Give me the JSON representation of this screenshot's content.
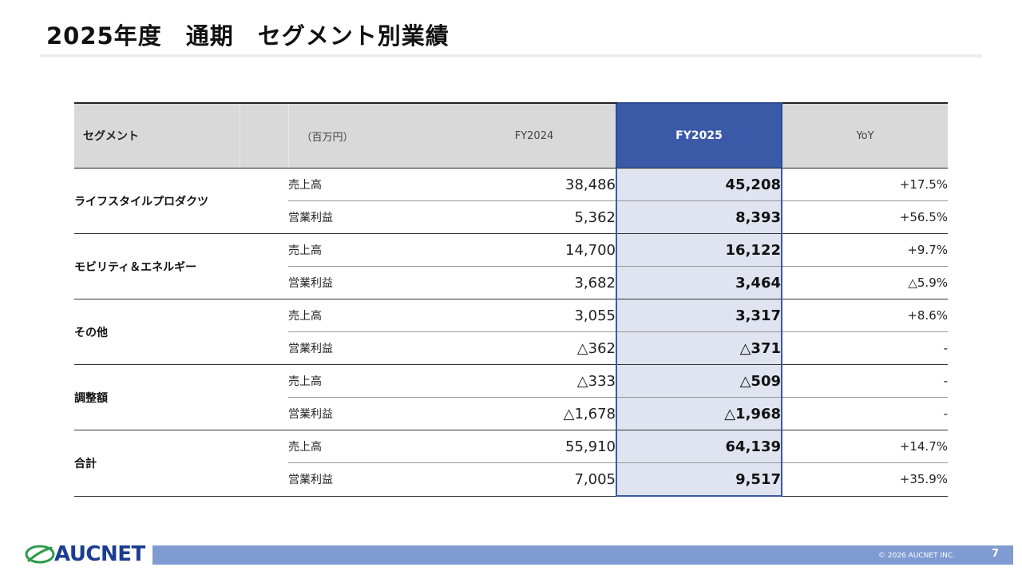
{
  "page": {
    "title": "2025年度　通期　セグメント別業績",
    "page_number": "7",
    "copyright": "© 2026 AUCNET INC.",
    "logo_text": "AUCNET"
  },
  "table": {
    "headers": {
      "segment": "セグメント",
      "unit": "（百万円）",
      "fy2024": "FY2024",
      "fy2025": "FY2025",
      "yoy": "YoY"
    },
    "segments": [
      {
        "name": "ライフスタイルプロダクツ",
        "rows": [
          {
            "metric": "売上高",
            "fy2024": "38,486",
            "fy2025": "45,208",
            "yoy": "+17.5%"
          },
          {
            "metric": "営業利益",
            "fy2024": "5,362",
            "fy2025": "8,393",
            "yoy": "+56.5%"
          }
        ]
      },
      {
        "name": "モビリティ＆エネルギー",
        "rows": [
          {
            "metric": "売上高",
            "fy2024": "14,700",
            "fy2025": "16,122",
            "yoy": "+9.7%"
          },
          {
            "metric": "営業利益",
            "fy2024": "3,682",
            "fy2025": "3,464",
            "yoy": "△5.9%"
          }
        ]
      },
      {
        "name": "その他",
        "rows": [
          {
            "metric": "売上高",
            "fy2024": "3,055",
            "fy2025": "3,317",
            "yoy": "+8.6%"
          },
          {
            "metric": "営業利益",
            "fy2024": "△362",
            "fy2025": "△371",
            "yoy": "-"
          }
        ]
      },
      {
        "name": "調整額",
        "rows": [
          {
            "metric": "売上高",
            "fy2024": "△333",
            "fy2025": "△509",
            "yoy": "-"
          },
          {
            "metric": "営業利益",
            "fy2024": "△1,678",
            "fy2025": "△1,968",
            "yoy": "-"
          }
        ]
      },
      {
        "name": "合計",
        "rows": [
          {
            "metric": "売上高",
            "fy2024": "55,910",
            "fy2025": "64,139",
            "yoy": "+14.7%"
          },
          {
            "metric": "営業利益",
            "fy2024": "7,005",
            "fy2025": "9,517",
            "yoy": "+35.9%"
          }
        ]
      }
    ]
  },
  "colors": {
    "accent": "#3a5aa8",
    "highlight_fill": "#dfe4f0",
    "footer_bar": "#7f9bd2",
    "logo": "#1b3e8f"
  }
}
